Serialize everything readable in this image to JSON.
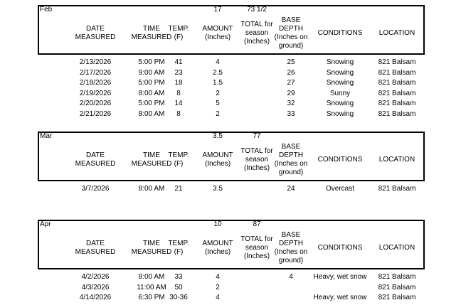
{
  "headers": {
    "date": "DATE MEASURED",
    "time": "TIME MEASURED",
    "temp": "TEMP.(F)",
    "amount": "AMOUNT (Inches)",
    "total": "TOTAL for season (Inches)",
    "base": "BASE DEPTH (Inches on ground)",
    "conditions": "CONDITIONS",
    "location": "LOCATION"
  },
  "sections": [
    {
      "month": "Feb",
      "amount_total": "17",
      "season_total": "73 1/2",
      "rows": [
        {
          "date": "2/13/2026",
          "time": "5:00 PM",
          "temp": "41",
          "amount": "4",
          "total": "",
          "base": "25",
          "conditions": "Snowing",
          "location": "821 Balsam"
        },
        {
          "date": "2/17/2026",
          "time": "9:00 AM",
          "temp": "23",
          "amount": "2.5",
          "total": "",
          "base": "26",
          "conditions": "Snowing",
          "location": "821 Balsam"
        },
        {
          "date": "2/18/2026",
          "time": "5:00 PM",
          "temp": "18",
          "amount": "1.5",
          "total": "",
          "base": "27",
          "conditions": "Snowing",
          "location": "821 Balsam"
        },
        {
          "date": "2/19/2026",
          "time": "8:00 AM",
          "temp": "8",
          "amount": "2",
          "total": "",
          "base": "29",
          "conditions": "Sunny",
          "location": "821 Balsam"
        },
        {
          "date": "2/20/2026",
          "time": "5:00 PM",
          "temp": "14",
          "amount": "5",
          "total": "",
          "base": "32",
          "conditions": "Snowing",
          "location": "821 Balsam"
        },
        {
          "date": "2/21/2026",
          "time": "8:00 AM",
          "temp": "8",
          "amount": "2",
          "total": "",
          "base": "33",
          "conditions": "Snowing",
          "location": "821 Balsam"
        }
      ]
    },
    {
      "month": "Mar",
      "amount_total": "3.5",
      "season_total": "77",
      "rows": [
        {
          "date": "3/7/2026",
          "time": "8:00 AM",
          "temp": "21",
          "amount": "3.5",
          "total": "",
          "base": "24",
          "conditions": "Overcast",
          "location": "821 Balsam"
        }
      ]
    },
    {
      "month": "Apr",
      "amount_total": "10",
      "season_total": "87",
      "rows": [
        {
          "date": "4/2/2026",
          "time": "8:00 AM",
          "temp": "33",
          "amount": "4",
          "total": "",
          "base": "4",
          "conditions": "Heavy, wet snow",
          "location": "821 Balsam"
        },
        {
          "date": "4/3/2026",
          "time": "11:00 AM",
          "temp": "50",
          "amount": "2",
          "total": "",
          "base": "",
          "conditions": "",
          "location": "821 Balsam"
        },
        {
          "date": "4/14/2026",
          "time": "6:30 PM",
          "temp": "30-36",
          "amount": "4",
          "total": "",
          "base": "",
          "conditions": "Heavy, wet snow",
          "location": "821 Balsam"
        }
      ]
    }
  ]
}
